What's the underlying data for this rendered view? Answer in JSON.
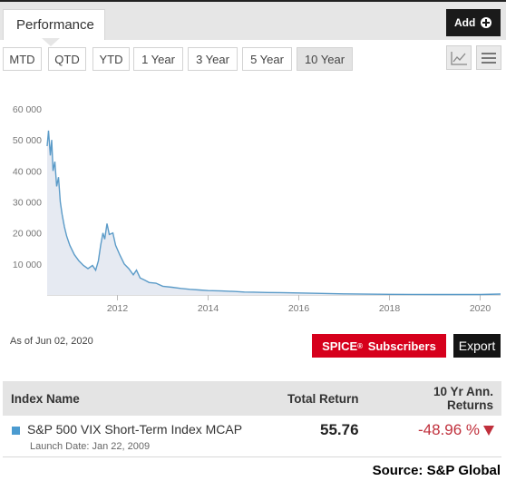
{
  "header": {
    "tab_label": "Performance",
    "add_label": "Add",
    "add_icon": "plus-circle-icon"
  },
  "ranges": [
    {
      "label": "MTD",
      "active": false
    },
    {
      "label": "QTD",
      "active": false
    },
    {
      "label": "YTD",
      "active": false
    },
    {
      "label": "1 Year",
      "active": false
    },
    {
      "label": "3 Year",
      "active": false
    },
    {
      "label": "5 Year",
      "active": false
    },
    {
      "label": "10 Year",
      "active": true
    }
  ],
  "view_icons": [
    "line-chart-icon",
    "menu-icon"
  ],
  "chart_data": {
    "type": "area",
    "title": "",
    "xlabel": "",
    "ylabel": "",
    "ylim": [
      0,
      60000
    ],
    "yticks": [
      "60 000",
      "50 000",
      "40 000",
      "30 000",
      "20 000",
      "10 000"
    ],
    "xticks": [
      "2012",
      "2014",
      "2016",
      "2018",
      "2020"
    ],
    "xlim": [
      2010.45,
      2020.45
    ],
    "grid": false,
    "legend": "none",
    "line_color": "#5b9bc8",
    "fill_color": "#e6eaf2",
    "series": [
      {
        "points": [
          [
            2010.45,
            48000
          ],
          [
            2010.48,
            53000
          ],
          [
            2010.52,
            45000
          ],
          [
            2010.55,
            50000
          ],
          [
            2010.58,
            40000
          ],
          [
            2010.62,
            43000
          ],
          [
            2010.66,
            35000
          ],
          [
            2010.7,
            38000
          ],
          [
            2010.74,
            30000
          ],
          [
            2010.78,
            26000
          ],
          [
            2010.83,
            22000
          ],
          [
            2010.88,
            19000
          ],
          [
            2010.95,
            16000
          ],
          [
            2011.05,
            13000
          ],
          [
            2011.15,
            11000
          ],
          [
            2011.25,
            9500
          ],
          [
            2011.35,
            8500
          ],
          [
            2011.45,
            9500
          ],
          [
            2011.52,
            8000
          ],
          [
            2011.58,
            11000
          ],
          [
            2011.63,
            16000
          ],
          [
            2011.68,
            20000
          ],
          [
            2011.72,
            18000
          ],
          [
            2011.77,
            23000
          ],
          [
            2011.82,
            19500
          ],
          [
            2011.9,
            20000
          ],
          [
            2011.96,
            16000
          ],
          [
            2012.05,
            13000
          ],
          [
            2012.15,
            10000
          ],
          [
            2012.25,
            8500
          ],
          [
            2012.35,
            6500
          ],
          [
            2012.42,
            8000
          ],
          [
            2012.5,
            5500
          ],
          [
            2012.6,
            4800
          ],
          [
            2012.7,
            4000
          ],
          [
            2012.85,
            3800
          ],
          [
            2013.0,
            2800
          ],
          [
            2013.2,
            2500
          ],
          [
            2013.4,
            2100
          ],
          [
            2013.6,
            1800
          ],
          [
            2013.8,
            1600
          ],
          [
            2014.0,
            1400
          ],
          [
            2014.3,
            1300
          ],
          [
            2014.6,
            1100
          ],
          [
            2014.8,
            950
          ],
          [
            2015.0,
            900
          ],
          [
            2015.3,
            800
          ],
          [
            2015.6,
            750
          ],
          [
            2016.0,
            650
          ],
          [
            2016.5,
            500
          ],
          [
            2017.0,
            350
          ],
          [
            2017.5,
            250
          ],
          [
            2018.0,
            200
          ],
          [
            2018.5,
            180
          ],
          [
            2019.0,
            160
          ],
          [
            2019.5,
            150
          ],
          [
            2020.0,
            140
          ],
          [
            2020.45,
            300
          ]
        ]
      }
    ]
  },
  "asof": {
    "prefix": "As of",
    "date": "Jun 02, 2020"
  },
  "spice": {
    "label": "SPICE",
    "mark": "®",
    "suffix": "Subscribers"
  },
  "export_label": "Export",
  "table": {
    "col_name": "Index Name",
    "col_total": "Total Return",
    "col_ann_line1": "10 Yr Ann.",
    "col_ann_line2": "Returns",
    "row": {
      "name": "S&P 500 VIX Short-Term Index MCAP",
      "launch": "Launch Date: Jan 22, 2009",
      "total_return": "55.76",
      "ann_return": "-48.96 %",
      "color": "#4b9bd0"
    }
  },
  "source": "Source: S&P Global"
}
